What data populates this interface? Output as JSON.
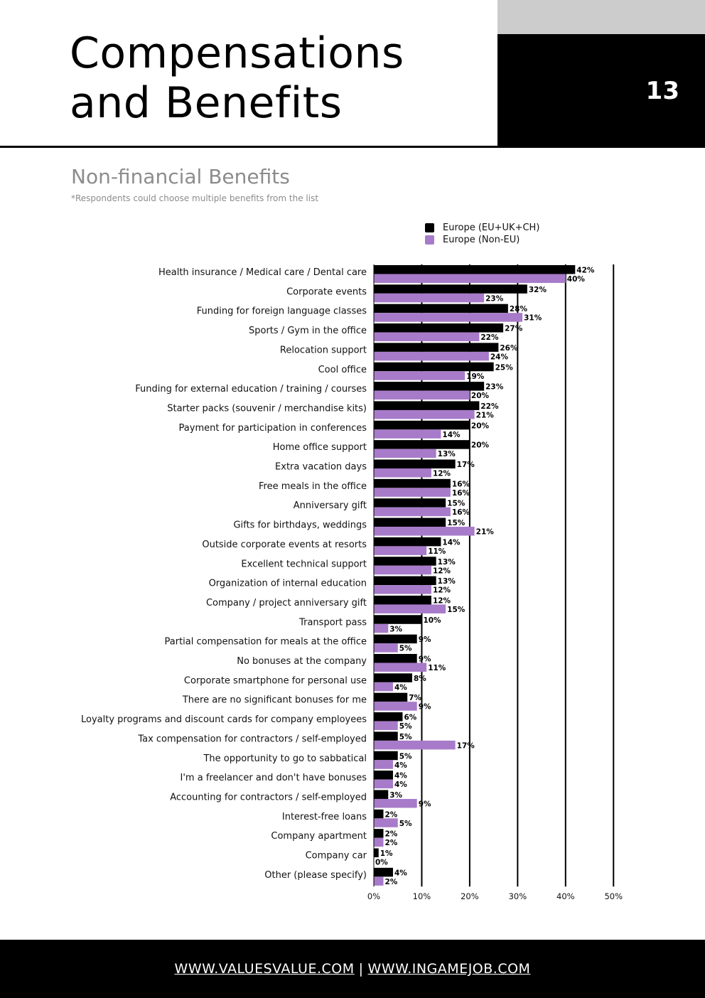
{
  "header": {
    "title_line1": "Compensations",
    "title_line2": "and Benefits",
    "page_number": "13"
  },
  "section": {
    "title": "Non-financial Benefits",
    "note": "*Respondents could choose multiple benefits from the list"
  },
  "colors": {
    "series1": "#000000",
    "series2": "#a77bc9",
    "header_gray": "#cccccc",
    "subtitle_gray": "#8c8c8c"
  },
  "legend": [
    {
      "label": "Europe (EU+UK+CH)",
      "color": "#000000"
    },
    {
      "label": "Europe (Non-EU)",
      "color": "#a77bc9"
    }
  ],
  "chart_data": {
    "type": "bar",
    "orientation": "horizontal",
    "categories": [
      "Health insurance / Medical care / Dental care",
      "Corporate events",
      "Funding for foreign language classes",
      "Sports / Gym in the office",
      "Relocation support",
      "Cool office",
      "Funding for external education / training / courses",
      "Starter packs (souvenir / merchandise kits)",
      "Payment for participation in conferences",
      "Home office support",
      "Extra vacation days",
      "Free meals in the office",
      "Anniversary gift",
      "Gifts for birthdays, weddings",
      "Outside corporate events at resorts",
      "Excellent technical support",
      "Organization of internal education",
      "Company / project anniversary gift",
      "Transport pass",
      "Partial compensation for meals at the office",
      "No bonuses at the company",
      "Corporate smartphone for personal use",
      "There are no significant bonuses for me",
      "Loyalty programs and discount cards for company employees",
      "Tax compensation for contractors / self-employed",
      "The opportunity to go to sabbatical",
      "I'm a freelancer and don't have bonuses",
      "Accounting for contractors / self-employed",
      "Interest-free loans",
      "Company apartment",
      "Company car",
      "Other (please specify)"
    ],
    "series": [
      {
        "name": "Europe (EU+UK+CH)",
        "values": [
          42,
          32,
          28,
          27,
          26,
          25,
          23,
          22,
          20,
          20,
          17,
          16,
          15,
          15,
          14,
          13,
          13,
          12,
          10,
          9,
          9,
          8,
          7,
          6,
          5,
          5,
          4,
          3,
          2,
          2,
          1,
          4
        ]
      },
      {
        "name": "Europe (Non-EU)",
        "values": [
          40,
          23,
          31,
          22,
          24,
          19,
          20,
          21,
          14,
          13,
          12,
          16,
          16,
          21,
          11,
          12,
          12,
          15,
          3,
          5,
          11,
          4,
          9,
          5,
          17,
          4,
          4,
          9,
          5,
          2,
          0,
          2
        ]
      }
    ],
    "x_ticks": [
      "0%",
      "10%",
      "20%",
      "30%",
      "40%",
      "50%"
    ],
    "xlim": [
      0,
      50
    ],
    "grid": true,
    "legend_position": "top",
    "value_suffix": "%"
  },
  "footer": {
    "link1": "WWW.VALUESVALUE.COM",
    "separator": "|",
    "link2": "WWW.INGAMEJOB.COM"
  }
}
